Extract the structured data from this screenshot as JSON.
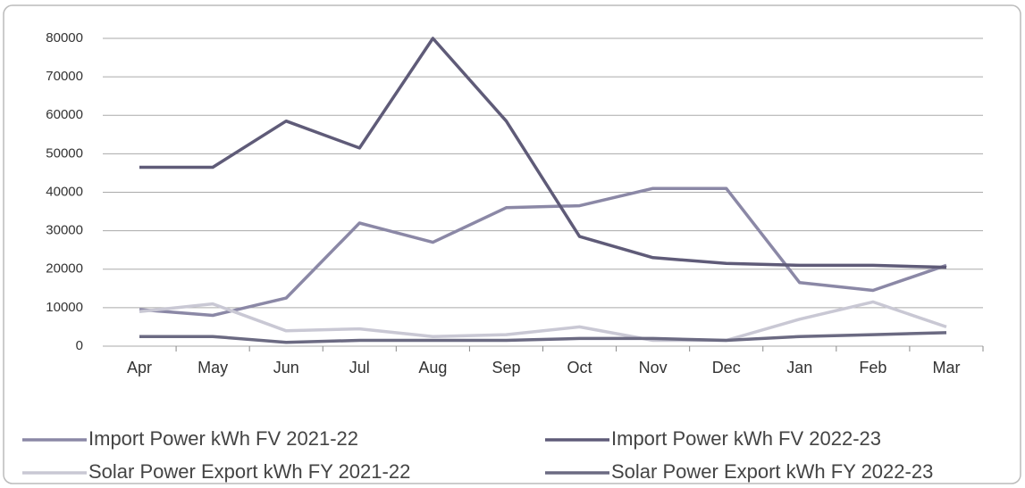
{
  "chart_data": {
    "type": "line",
    "categories": [
      "Apr",
      "May",
      "Jun",
      "Jul",
      "Aug",
      "Sep",
      "Oct",
      "Nov",
      "Dec",
      "Jan",
      "Feb",
      "Mar"
    ],
    "series": [
      {
        "name": "Import Power kWh FV 2021-22",
        "color": "#8b88a6",
        "values": [
          9500,
          8000,
          12500,
          32000,
          27000,
          36000,
          36500,
          41000,
          41000,
          16500,
          14500,
          21000
        ]
      },
      {
        "name": "Import Power kWh FV 2022-23",
        "color": "#5f5b78",
        "values": [
          46500,
          46500,
          58500,
          51500,
          80000,
          58500,
          28500,
          23000,
          21500,
          21000,
          21000,
          20500
        ]
      },
      {
        "name": "Solar Power Export kWh  FY 2021-22",
        "color": "#c9c8d4",
        "values": [
          9000,
          11000,
          4000,
          4500,
          2500,
          3000,
          5000,
          1500,
          1500,
          7000,
          11500,
          5000
        ]
      },
      {
        "name": "Solar Power Export kWh  FY 2022-23",
        "color": "#6b6a82",
        "values": [
          2500,
          2500,
          1000,
          1500,
          1500,
          1500,
          2000,
          2000,
          1500,
          2500,
          3000,
          3500
        ]
      }
    ],
    "ylim": [
      0,
      80000
    ],
    "yticks": [
      0,
      10000,
      20000,
      30000,
      40000,
      50000,
      60000,
      70000,
      80000
    ],
    "grid": true
  }
}
